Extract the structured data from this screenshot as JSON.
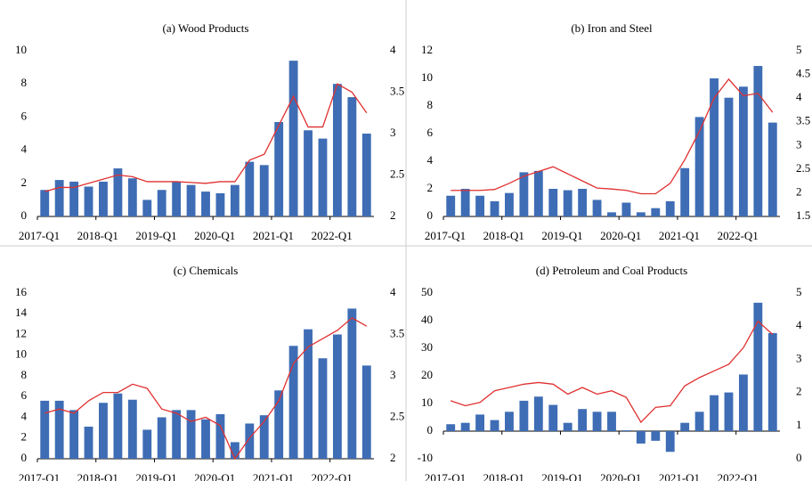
{
  "chart_data": [
    {
      "type": "bar",
      "title": "(a) Wood Products",
      "categories": [
        "2017-Q1",
        null,
        null,
        null,
        "2018-Q1",
        null,
        null,
        null,
        "2019-Q1",
        null,
        null,
        null,
        "2020-Q1",
        null,
        null,
        null,
        "2021-Q1",
        null,
        null,
        null,
        "2022-Q1",
        null,
        null
      ],
      "series": [
        {
          "type": "bar",
          "color": "#3e6db5",
          "values": [
            1.6,
            2.2,
            2.1,
            1.8,
            2.1,
            2.9,
            2.3,
            1.0,
            1.6,
            2.1,
            1.9,
            1.5,
            1.4,
            1.9,
            3.3,
            3.1,
            5.7,
            9.4,
            5.2,
            4.7,
            8.0,
            7.2,
            5.0
          ]
        },
        {
          "type": "line",
          "axis": "y2",
          "color": "#e03030",
          "values": [
            2.3,
            2.35,
            2.35,
            2.4,
            2.45,
            2.5,
            2.48,
            2.42,
            2.42,
            2.42,
            2.41,
            2.4,
            2.42,
            2.42,
            2.68,
            2.75,
            3.1,
            3.45,
            3.08,
            3.08,
            3.6,
            3.5,
            3.25
          ]
        }
      ],
      "ylim": [
        0,
        10
      ],
      "yticks": [
        0,
        2,
        4,
        6,
        8,
        10
      ],
      "y2lim": [
        2,
        4
      ],
      "y2ticks": [
        2,
        2.5,
        3,
        3.5,
        4
      ]
    },
    {
      "type": "bar",
      "title": "(b) Iron and Steel",
      "categories": [
        "2017-Q1",
        null,
        null,
        null,
        "2018-Q1",
        null,
        null,
        null,
        "2019-Q1",
        null,
        null,
        null,
        "2020-Q1",
        null,
        null,
        null,
        "2021-Q1",
        null,
        null,
        null,
        "2022-Q1",
        null,
        null
      ],
      "series": [
        {
          "type": "bar",
          "color": "#3e6db5",
          "values": [
            1.5,
            2.0,
            1.5,
            1.1,
            1.7,
            3.2,
            3.3,
            2.0,
            1.9,
            2.0,
            1.2,
            0.3,
            1.0,
            0.3,
            0.6,
            1.1,
            3.5,
            7.2,
            10.0,
            8.6,
            9.4,
            10.9,
            6.8
          ]
        },
        {
          "type": "line",
          "axis": "y2",
          "color": "#e03030",
          "values": [
            2.05,
            2.05,
            2.05,
            2.07,
            2.2,
            2.35,
            2.45,
            2.55,
            2.4,
            2.25,
            2.1,
            2.08,
            2.05,
            1.98,
            1.98,
            2.2,
            2.7,
            3.3,
            4.0,
            4.4,
            4.05,
            4.1,
            3.7
          ]
        }
      ],
      "ylim": [
        0,
        12
      ],
      "yticks": [
        0,
        2,
        4,
        6,
        8,
        10,
        12
      ],
      "y2lim": [
        1.5,
        5
      ],
      "y2ticks": [
        1.5,
        2,
        2.5,
        3,
        3.5,
        4,
        4.5,
        5
      ]
    },
    {
      "type": "bar",
      "title": "(c) Chemicals",
      "categories": [
        "2017-Q1",
        null,
        null,
        null,
        "2018-Q1",
        null,
        null,
        null,
        "2019-Q1",
        null,
        null,
        null,
        "2020-Q1",
        null,
        null,
        null,
        "2021-Q1",
        null,
        null,
        null,
        "2022-Q1",
        null,
        null
      ],
      "series": [
        {
          "type": "bar",
          "color": "#3e6db5",
          "values": [
            5.6,
            5.6,
            4.7,
            3.1,
            5.4,
            6.3,
            5.7,
            2.8,
            4.0,
            4.7,
            4.7,
            3.8,
            4.3,
            1.6,
            3.4,
            4.2,
            6.6,
            10.9,
            12.5,
            9.7,
            12.0,
            14.5,
            9.0
          ]
        },
        {
          "type": "line",
          "axis": "y2",
          "color": "#e03030",
          "values": [
            2.55,
            2.6,
            2.55,
            2.7,
            2.8,
            2.8,
            2.9,
            2.85,
            2.6,
            2.55,
            2.45,
            2.5,
            2.4,
            2.0,
            2.25,
            2.45,
            2.7,
            3.15,
            3.35,
            3.45,
            3.55,
            3.7,
            3.6
          ]
        }
      ],
      "ylim": [
        0,
        16
      ],
      "yticks": [
        0,
        2,
        4,
        6,
        8,
        10,
        12,
        14,
        16
      ],
      "y2lim": [
        2,
        4
      ],
      "y2ticks": [
        2,
        2.5,
        3,
        3.5,
        4
      ]
    },
    {
      "type": "bar",
      "title": "(d) Petroleum and Coal Products",
      "categories": [
        "2017-Q1",
        null,
        null,
        null,
        "2018-Q1",
        null,
        null,
        null,
        "2019-Q1",
        null,
        null,
        null,
        "2020-Q1",
        null,
        null,
        null,
        "2021-Q1",
        null,
        null,
        null,
        "2022-Q1",
        null,
        null
      ],
      "series": [
        {
          "type": "bar",
          "color": "#3e6db5",
          "values": [
            2.5,
            3,
            6,
            4,
            7,
            11,
            12.5,
            9.5,
            3,
            8,
            7,
            7,
            0.3,
            -4.5,
            -3.5,
            -7.5,
            3,
            7,
            13,
            14,
            20.5,
            46.5,
            35.5
          ]
        },
        {
          "type": "line",
          "axis": "y2",
          "color": "#e03030",
          "values": [
            1.75,
            1.6,
            1.7,
            2.05,
            2.15,
            2.25,
            2.3,
            2.25,
            1.95,
            2.15,
            1.95,
            2.05,
            1.85,
            1.1,
            1.55,
            1.6,
            2.2,
            2.45,
            2.65,
            2.85,
            3.35,
            4.15,
            3.75
          ]
        }
      ],
      "ylim": [
        -10,
        50
      ],
      "yticks": [
        -10,
        0,
        10,
        20,
        30,
        40,
        50
      ],
      "y2lim": [
        0,
        5
      ],
      "y2ticks": [
        0,
        1,
        2,
        3,
        4,
        5
      ]
    }
  ]
}
